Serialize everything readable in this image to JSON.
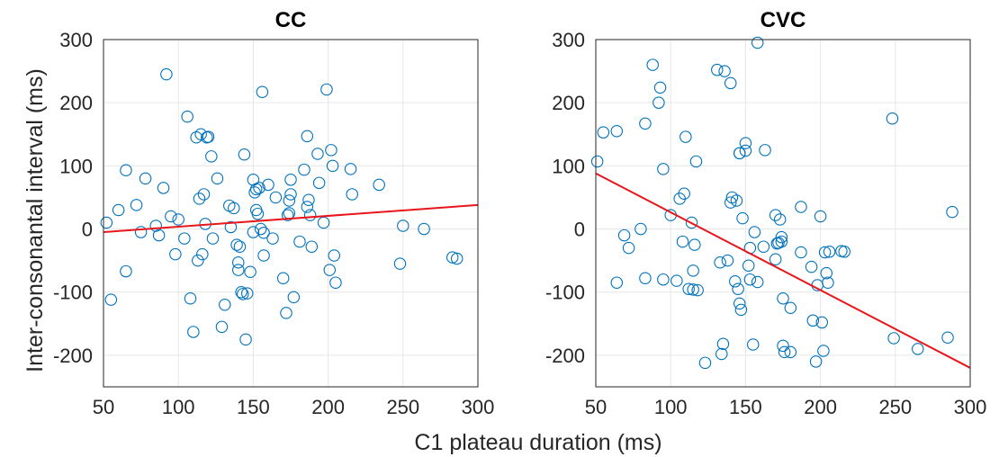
{
  "colors": {
    "marker": "#0072BD",
    "fit_line": "#E8161B",
    "grid": "#E6E6E6",
    "axis": "#262626"
  },
  "shared_labels": {
    "xlabel": "C1 plateau duration (ms)",
    "ylabel": "Inter-consonantal interval (ms)"
  },
  "chart_data": [
    {
      "type": "scatter",
      "title": "CC",
      "xlim": [
        50,
        300
      ],
      "ylim": [
        -250,
        300
      ],
      "xticks": [
        "50",
        "100",
        "150",
        "200",
        "250",
        "300"
      ],
      "yticks": [
        "300",
        "200",
        "100",
        "0",
        "-100",
        "-200"
      ],
      "grid": true,
      "x": [
        52,
        55,
        60,
        65,
        65,
        72,
        75,
        78,
        85,
        87,
        90,
        92,
        95,
        98,
        100,
        104,
        106,
        108,
        110,
        112,
        113,
        114,
        115,
        116,
        117,
        118,
        119,
        120,
        122,
        123,
        126,
        129,
        131,
        134,
        135,
        137,
        139,
        140,
        140,
        141,
        142,
        143,
        144,
        145,
        146,
        148,
        150,
        150,
        151,
        152,
        152,
        153,
        154,
        155,
        156,
        157,
        157,
        160,
        163,
        165,
        170,
        172,
        173,
        174,
        174,
        175,
        175,
        177,
        181,
        184,
        186,
        186,
        187,
        188,
        189,
        193,
        194,
        197,
        199,
        201,
        202,
        203,
        204,
        205,
        215,
        216,
        234,
        248,
        250,
        264,
        283,
        286
      ],
      "y": [
        10,
        -112,
        30,
        93,
        -67,
        38,
        -5,
        80,
        5,
        -10,
        65,
        245,
        20,
        -40,
        15,
        -15,
        178,
        -110,
        -163,
        145,
        -50,
        48,
        150,
        -40,
        55,
        8,
        145,
        146,
        115,
        -15,
        80,
        -155,
        -120,
        37,
        3,
        33,
        -25,
        -53,
        -65,
        -28,
        -100,
        -103,
        118,
        -175,
        -102,
        -68,
        78,
        -5,
        58,
        30,
        63,
        24,
        65,
        0,
        217,
        -6,
        -42,
        70,
        -15,
        50,
        -78,
        -133,
        22,
        25,
        45,
        78,
        55,
        -108,
        -20,
        94,
        147,
        35,
        46,
        22,
        -28,
        119,
        73,
        10,
        221,
        -65,
        125,
        100,
        -42,
        -85,
        95,
        55,
        70,
        -55,
        5,
        0,
        -45,
        -47
      ],
      "fit": {
        "x": [
          50,
          300
        ],
        "y": [
          -5,
          38
        ]
      }
    },
    {
      "type": "scatter",
      "title": "CVC",
      "xlim": [
        50,
        300
      ],
      "ylim": [
        -250,
        300
      ],
      "xticks": [
        "50",
        "100",
        "150",
        "200",
        "250",
        "300"
      ],
      "yticks": [
        "300",
        "200",
        "100",
        "0",
        "-100",
        "-200"
      ],
      "grid": true,
      "x": [
        51,
        55,
        64,
        64,
        69,
        72,
        80,
        83,
        83,
        88,
        92,
        93,
        95,
        95,
        100,
        104,
        106,
        108,
        109,
        110,
        112,
        114,
        115,
        115,
        116,
        117,
        118,
        123,
        131,
        133,
        134,
        135,
        136,
        138,
        140,
        140,
        141,
        143,
        144,
        145,
        146,
        146,
        146,
        147,
        148,
        150,
        150,
        152,
        153,
        153,
        155,
        156,
        158,
        158,
        162,
        163,
        170,
        170,
        171,
        172,
        173,
        174,
        174,
        175,
        175,
        176,
        180,
        180,
        187,
        187,
        194,
        195,
        197,
        198,
        200,
        201,
        202,
        203,
        204,
        205,
        206,
        214,
        216,
        248,
        249,
        265,
        285,
        288
      ],
      "y": [
        107,
        153,
        155,
        -85,
        -10,
        -30,
        0,
        167,
        -78,
        260,
        200,
        224,
        -80,
        95,
        22,
        -82,
        48,
        -20,
        56,
        146,
        -95,
        10,
        -96,
        -66,
        -25,
        107,
        -97,
        -212,
        252,
        -53,
        -198,
        -182,
        250,
        -50,
        231,
        42,
        50,
        -83,
        45,
        -95,
        120,
        120,
        -118,
        -128,
        17,
        124,
        136,
        -58,
        -80,
        -30,
        -183,
        -5,
        295,
        -84,
        -28,
        125,
        22,
        -48,
        -23,
        -22,
        15,
        -13,
        -20,
        -185,
        -110,
        -195,
        -125,
        -195,
        -37,
        35,
        -60,
        -145,
        -210,
        -89,
        20,
        -148,
        -193,
        -37,
        -70,
        -85,
        -36,
        -35,
        -36,
        175,
        -173,
        -190,
        -172,
        27
      ],
      "fit": {
        "x": [
          50,
          300
        ],
        "y": [
          88,
          -220
        ]
      }
    }
  ]
}
